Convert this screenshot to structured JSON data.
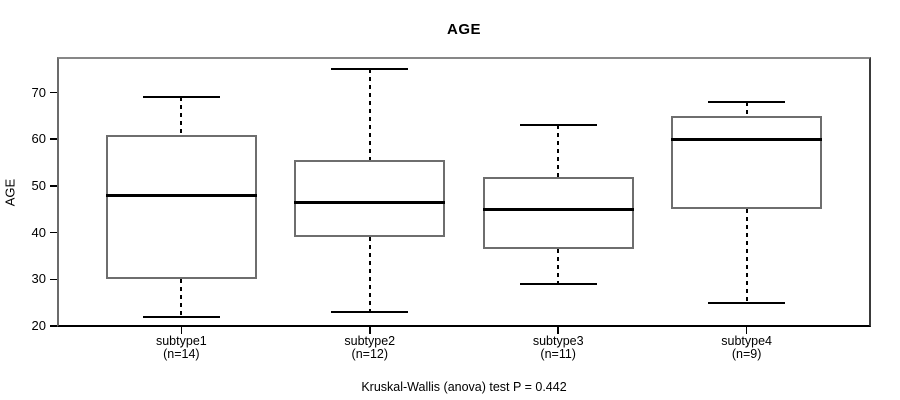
{
  "chart_data": {
    "type": "boxplot",
    "title": "AGE",
    "ylabel": "AGE",
    "xlabel": "",
    "ylim": [
      19.8,
      77.6
    ],
    "yticks": [
      20,
      30,
      40,
      50,
      60,
      70
    ],
    "grid": false,
    "legend": null,
    "groups": [
      {
        "label": "subtype1",
        "count_label": "(n=14)",
        "n": 14,
        "whisker_low": 22,
        "q1": 30,
        "median": 48,
        "q3": 61,
        "whisker_high": 69
      },
      {
        "label": "subtype2",
        "count_label": "(n=12)",
        "n": 12,
        "whisker_low": 23,
        "q1": 39,
        "median": 46.5,
        "q3": 55.5,
        "whisker_high": 75
      },
      {
        "label": "subtype3",
        "count_label": "(n=11)",
        "n": 11,
        "whisker_low": 29,
        "q1": 36.5,
        "median": 45,
        "q3": 52,
        "whisker_high": 63
      },
      {
        "label": "subtype4",
        "count_label": "(n=9)",
        "n": 9,
        "whisker_low": 25,
        "q1": 45,
        "median": 60,
        "q3": 65,
        "whisker_high": 68
      }
    ],
    "annotation": "Kruskal-Wallis (anova) test P = 0.442",
    "colors": {
      "background": "#ffffff",
      "frame": "#878787",
      "box_border": "#6e6e6e",
      "median": "#000000",
      "whisker": "#000000",
      "text": "#000000"
    }
  }
}
